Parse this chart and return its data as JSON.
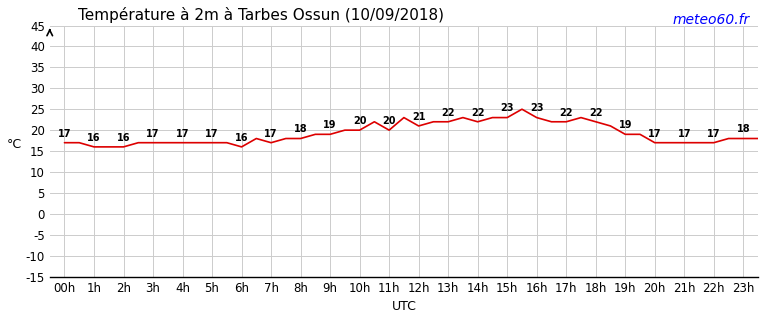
{
  "title": "Température à 2m à Tarbes Ossun (10/09/2018)",
  "ylabel": "°C",
  "watermark": "meteo60.fr",
  "xlabel": "UTC",
  "hours": [
    0,
    1,
    2,
    3,
    4,
    5,
    6,
    7,
    8,
    9,
    10,
    11,
    12,
    13,
    14,
    15,
    16,
    17,
    18,
    19,
    20,
    21,
    22,
    23
  ],
  "hour_labels": [
    "00h",
    "1h",
    "2h",
    "3h",
    "4h",
    "5h",
    "6h",
    "7h",
    "8h",
    "9h",
    "10h",
    "11h",
    "12h",
    "13h",
    "14h",
    "15h",
    "16h",
    "17h",
    "18h",
    "19h",
    "20h",
    "21h",
    "22h",
    "23h"
  ],
  "temperatures": [
    17,
    17,
    16,
    16,
    16,
    17,
    17,
    17,
    17,
    17,
    17,
    17,
    16,
    18,
    17,
    18,
    18,
    19,
    19,
    20,
    20,
    22,
    20,
    23
  ],
  "temps_full": [
    17,
    17,
    16,
    16,
    16,
    17,
    17,
    17,
    17,
    17,
    17,
    17,
    16,
    18,
    17,
    18,
    18,
    19,
    19,
    20,
    20,
    22,
    20,
    23,
    21,
    22,
    22,
    23,
    22,
    23,
    23,
    25,
    23,
    22,
    22,
    23,
    22,
    21,
    19,
    19,
    17,
    17,
    17,
    17,
    17,
    18,
    18,
    18
  ],
  "x_indices": [
    0,
    1,
    2,
    3,
    4,
    5,
    6,
    7,
    8,
    9,
    10,
    11,
    12,
    13,
    14,
    15,
    16,
    17,
    18,
    19,
    20,
    21,
    22,
    23
  ],
  "temperatures_hourly": [
    17,
    17,
    16,
    16,
    16,
    17,
    17,
    17,
    17,
    17,
    17,
    17,
    16,
    18,
    17,
    18,
    18,
    19,
    19,
    20,
    20,
    22,
    20,
    23,
    21,
    22,
    22,
    23,
    22,
    23,
    23,
    25,
    23,
    22,
    22,
    23,
    22,
    21,
    19,
    19,
    17,
    17,
    17,
    17,
    17,
    18,
    18,
    18
  ],
  "ylim_min": -15,
  "ylim_max": 45,
  "yticks": [
    -15,
    -10,
    -5,
    0,
    5,
    10,
    15,
    20,
    25,
    30,
    35,
    40,
    45
  ],
  "line_color": "#dd0000",
  "background_color": "#ffffff",
  "grid_color": "#cccccc",
  "title_fontsize": 11,
  "tick_fontsize": 8.5,
  "label_fontsize": 9
}
